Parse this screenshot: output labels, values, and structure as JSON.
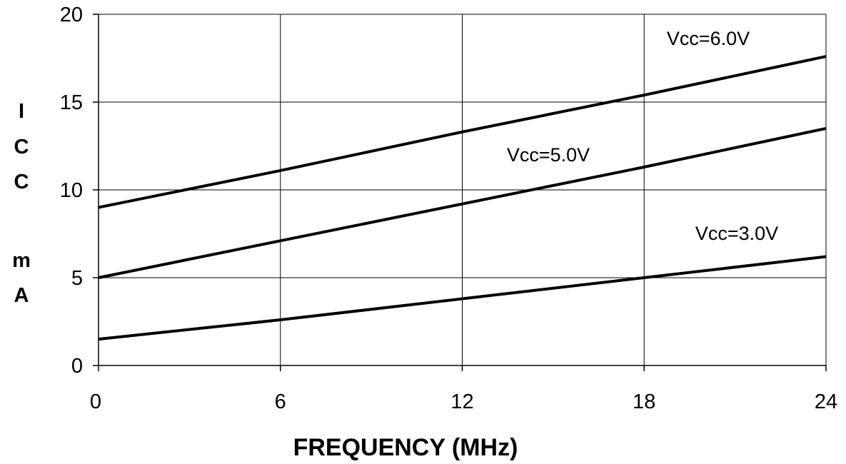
{
  "chart_data": {
    "type": "line",
    "title": "",
    "xlabel": "FREQUENCY (MHz)",
    "ylabel_letters": [
      "I",
      "C",
      "C",
      "",
      "m",
      "A"
    ],
    "xlim": [
      0,
      24
    ],
    "ylim": [
      0,
      20
    ],
    "xticks": [
      0,
      6,
      12,
      18,
      24
    ],
    "yticks": [
      0,
      5,
      10,
      15,
      20
    ],
    "grid": true,
    "series": [
      {
        "name": "Vcc=6.0V",
        "x": [
          0,
          6,
          12,
          18,
          24
        ],
        "y": [
          9.0,
          11.1,
          13.3,
          15.4,
          17.6
        ]
      },
      {
        "name": "Vcc=5.0V",
        "x": [
          0,
          6,
          12,
          18,
          24
        ],
        "y": [
          5.0,
          7.1,
          9.2,
          11.3,
          13.5
        ]
      },
      {
        "name": "Vcc=3.0V",
        "x": [
          0,
          6,
          12,
          18,
          24
        ],
        "y": [
          1.5,
          2.6,
          3.8,
          5.0,
          6.2
        ]
      }
    ]
  }
}
